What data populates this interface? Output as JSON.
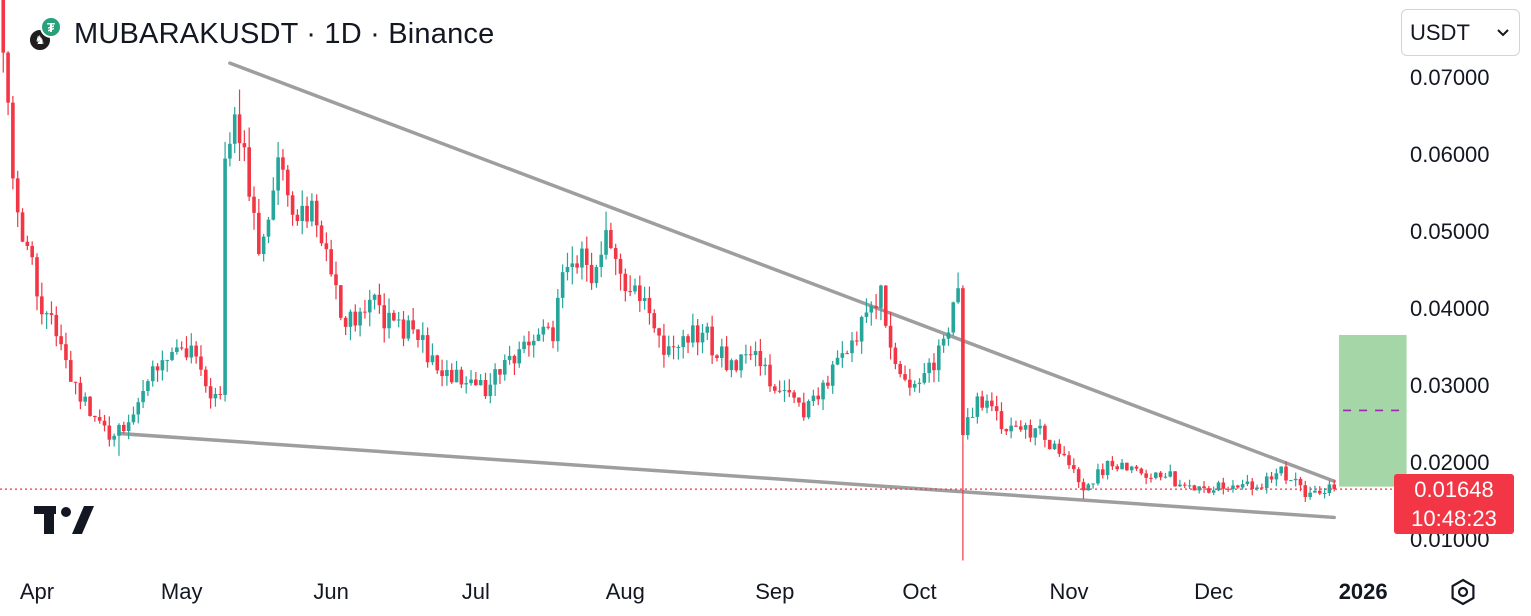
{
  "header": {
    "title": "MUBARAKUSDT · 1D · Binance"
  },
  "currency_select": {
    "value": "USDT"
  },
  "price_label": {
    "price": "0.01648",
    "countdown": "10:48:23"
  },
  "colors": {
    "up": "#26a69a",
    "down": "#f23645",
    "trendline": "#9e9e9e",
    "target_box": "#a5d6a7",
    "target_mid": "#9c27b0"
  },
  "icons": {
    "logo": "tradingview-logo",
    "settings": "settings-hexagon-icon",
    "chevron": "chevron-down-icon"
  },
  "chart_data": {
    "type": "candlestick",
    "title": "MUBARAKUSDT · 1D · Binance",
    "x_ticks": [
      "Apr",
      "May",
      "Jun",
      "Jul",
      "Aug",
      "Sep",
      "Oct",
      "Nov",
      "Dec",
      "2026"
    ],
    "y_ticks": [
      "0.01000",
      "0.02000",
      "0.03000",
      "0.04000",
      "0.05000",
      "0.06000",
      "0.07000"
    ],
    "ylim": [
      0.0055,
      0.079
    ],
    "last_price": 0.01648,
    "anchors": [
      [
        "2025-03-25",
        0.072
      ],
      [
        "2025-03-28",
        0.052
      ],
      [
        "2025-04-02",
        0.04
      ],
      [
        "2025-04-05",
        0.037
      ],
      [
        "2025-04-08",
        0.03
      ],
      [
        "2025-04-12",
        0.027
      ],
      [
        "2025-04-16",
        0.023
      ],
      [
        "2025-04-22",
        0.027
      ],
      [
        "2025-04-27",
        0.034
      ],
      [
        "2025-05-02",
        0.035
      ],
      [
        "2025-05-07",
        0.029
      ],
      [
        "2025-05-09",
        0.03
      ],
      [
        "2025-05-10",
        0.058
      ],
      [
        "2025-05-12",
        0.063
      ],
      [
        "2025-05-15",
        0.056
      ],
      [
        "2025-05-17",
        0.045
      ],
      [
        "2025-05-21",
        0.06
      ],
      [
        "2025-05-24",
        0.053
      ],
      [
        "2025-05-28",
        0.052
      ],
      [
        "2025-06-01",
        0.045
      ],
      [
        "2025-06-03",
        0.038
      ],
      [
        "2025-06-10",
        0.041
      ],
      [
        "2025-06-14",
        0.037
      ],
      [
        "2025-06-18",
        0.038
      ],
      [
        "2025-06-23",
        0.032
      ],
      [
        "2025-06-28",
        0.031
      ],
      [
        "2025-07-03",
        0.029
      ],
      [
        "2025-07-07",
        0.033
      ],
      [
        "2025-07-12",
        0.036
      ],
      [
        "2025-07-17",
        0.037
      ],
      [
        "2025-07-20",
        0.047
      ],
      [
        "2025-07-25",
        0.045
      ],
      [
        "2025-07-28",
        0.05
      ],
      [
        "2025-07-31",
        0.043
      ],
      [
        "2025-08-05",
        0.041
      ],
      [
        "2025-08-10",
        0.034
      ],
      [
        "2025-08-17",
        0.037
      ],
      [
        "2025-08-22",
        0.033
      ],
      [
        "2025-08-27",
        0.034
      ],
      [
        "2025-09-02",
        0.029
      ],
      [
        "2025-09-07",
        0.027
      ],
      [
        "2025-09-12",
        0.031
      ],
      [
        "2025-09-16",
        0.034
      ],
      [
        "2025-09-20",
        0.04
      ],
      [
        "2025-09-23",
        0.042
      ],
      [
        "2025-09-26",
        0.032
      ],
      [
        "2025-10-01",
        0.029
      ],
      [
        "2025-10-04",
        0.033
      ],
      [
        "2025-10-07",
        0.036
      ],
      [
        "2025-10-09",
        0.042
      ],
      [
        "2025-10-10",
        0.024
      ],
      [
        "2025-10-13",
        0.028
      ],
      [
        "2025-10-18",
        0.025
      ],
      [
        "2025-10-26",
        0.024
      ],
      [
        "2025-11-01",
        0.02
      ],
      [
        "2025-11-04",
        0.017
      ],
      [
        "2025-11-10",
        0.02
      ],
      [
        "2025-11-15",
        0.019
      ],
      [
        "2025-11-22",
        0.018
      ],
      [
        "2025-11-27",
        0.016
      ],
      [
        "2025-12-03",
        0.017
      ],
      [
        "2025-12-10",
        0.017
      ],
      [
        "2025-12-15",
        0.019
      ],
      [
        "2025-12-20",
        0.016
      ],
      [
        "2025-12-23",
        0.0155
      ],
      [
        "2025-12-26",
        0.0168
      ]
    ],
    "spikes": [
      {
        "date": "2025-10-10",
        "low": 0.0072
      },
      {
        "date": "2025-04-18",
        "low": 0.0208
      },
      {
        "date": "2025-11-04",
        "low": 0.0152
      }
    ],
    "trendlines": [
      {
        "from": [
          "2025-05-11",
          0.0718
        ],
        "to": [
          "2025-12-26",
          0.0175
        ]
      },
      {
        "from": [
          "2025-04-18",
          0.0237
        ],
        "to": [
          "2025-12-26",
          0.0128
        ]
      }
    ],
    "target_box": {
      "from": "2025-12-27",
      "to": "2026-01-10",
      "top": 0.0365,
      "bottom": 0.0168,
      "mid": 0.0267
    },
    "grid": false
  }
}
